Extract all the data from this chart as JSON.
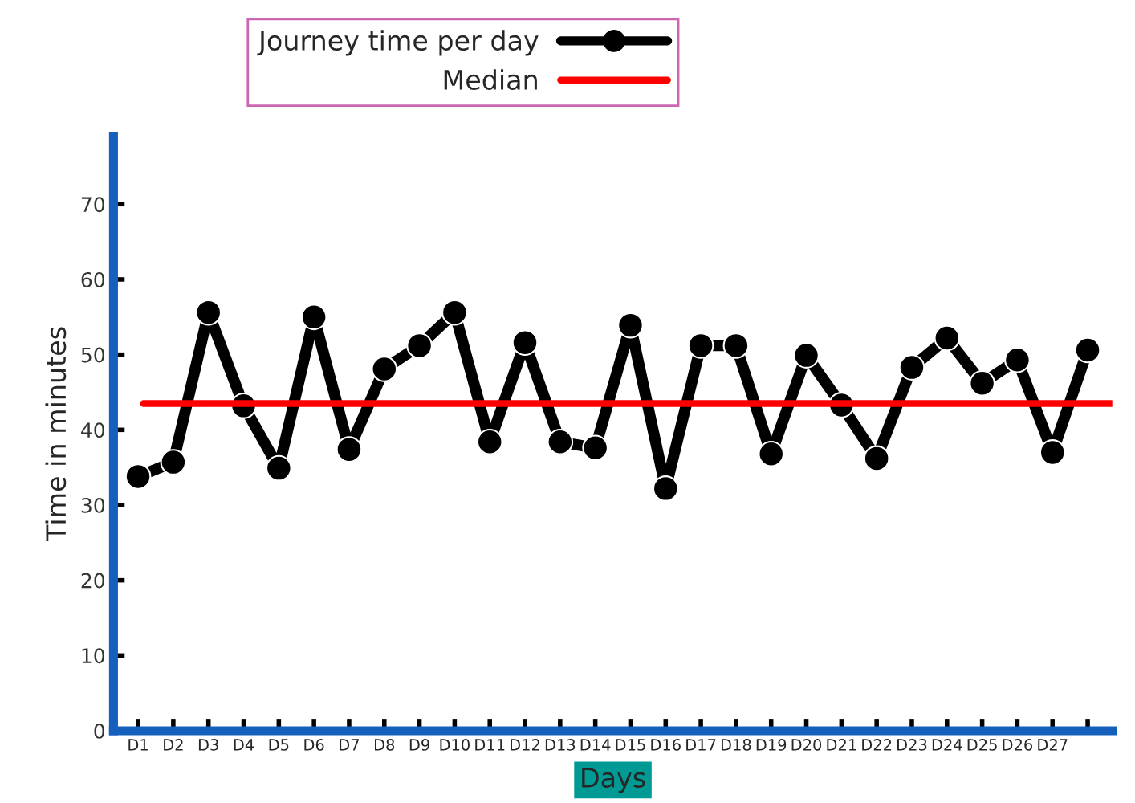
{
  "chart_data": {
    "type": "line",
    "xlabel": "Days",
    "ylabel": "Time in minutes",
    "categories": [
      "D1",
      "D2",
      "D3",
      "D4",
      "D5",
      "D6",
      "D7",
      "D8",
      "D9",
      "D10",
      "D11",
      "D12",
      "D13",
      "D14",
      "D15",
      "D16",
      "D17",
      "D18",
      "D19",
      "D20",
      "D21",
      "D22",
      "D23",
      "D24",
      "D25",
      "D26",
      "D27",
      null
    ],
    "series": [
      {
        "name": "Journey time per day",
        "color": "#000000",
        "values": [
          33.8,
          35.7,
          55.6,
          43.2,
          34.9,
          55,
          37.4,
          48.1,
          51.2,
          55.6,
          38.4,
          51.6,
          38.4,
          37.6,
          53.9,
          32.2,
          51.2,
          51.2,
          36.8,
          49.9,
          43.3,
          36.2,
          48.3,
          52.2,
          46.2,
          49.3,
          37,
          50.6
        ]
      }
    ],
    "ref_lines": [
      {
        "axis": "y",
        "value": 43.5,
        "label": "Median",
        "color": "#ff0000"
      }
    ],
    "ylim": [
      0,
      79
    ],
    "yticks": [
      0,
      10,
      20,
      30,
      40,
      50,
      60,
      70
    ],
    "marker": "circle",
    "line_style": "solid",
    "grid": false,
    "legend": "top"
  }
}
